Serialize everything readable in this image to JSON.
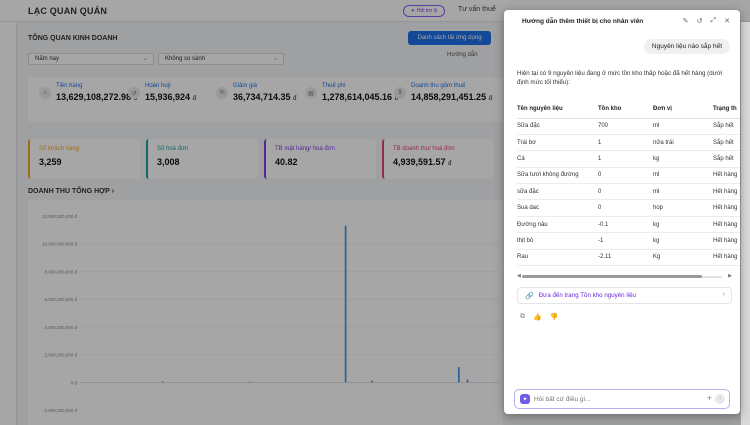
{
  "app": {
    "brand": "LẠC QUAN QUÁN",
    "top_badge": "Hỏi trợ lý",
    "top_link": "Tư vấn thuế"
  },
  "dashboard": {
    "section_title": "TỔNG QUAN KINH DOANH",
    "primary_button": "Danh sách tải ứng dụng",
    "period_select": "Năm nay",
    "compare_select": "Không so sánh",
    "guide_label": "Hướng dẫn",
    "kpis": [
      {
        "label": "Tiền hàng",
        "value": "13,629,108,272.98",
        "unit": "đ"
      },
      {
        "label": "Hoàn huỷ",
        "value": "15,936,924",
        "unit": "đ"
      },
      {
        "label": "Giảm giá",
        "value": "36,734,714.35",
        "unit": "đ"
      },
      {
        "label": "Thuế phí",
        "value": "1,278,614,045.16",
        "unit": "đ"
      },
      {
        "label": "Doanh thu gồm thuế",
        "value": "14,858,291,451.25",
        "unit": "đ"
      }
    ],
    "cards": [
      {
        "label": "Số khách hàng",
        "value": "3,259",
        "unit": "",
        "color": "#f5a623"
      },
      {
        "label": "Số hoá đơn",
        "value": "3,008",
        "unit": "",
        "color": "#1aa39a"
      },
      {
        "label": "TB mặt hàng/ hoá đơn",
        "value": "40.82",
        "unit": "",
        "color": "#7b3fe4"
      },
      {
        "label": "TB doanh thu/ hoá đơn",
        "value": "4,939,591.57",
        "unit": "đ",
        "color": "#e0457b"
      }
    ],
    "chart_title": "DOANH THU TỔNG HỢP"
  },
  "chart_data": {
    "type": "bar",
    "title": "",
    "ylim": [
      -2000000000,
      12000000000
    ],
    "yticks": [
      "12,000,000,000 đ",
      "10,000,000,000 đ",
      "8,000,000,000 đ",
      "6,000,000,000 đ",
      "4,000,000,000 đ",
      "2,000,000,000 đ",
      "0 đ",
      "-2,000,000,000 đ"
    ],
    "ytick_values": [
      12000000000,
      10000000000,
      8000000000,
      6000000000,
      4000000000,
      2000000000,
      0,
      -2000000000
    ],
    "n_bars": 48,
    "spikes": [
      {
        "index": 9,
        "value": 60000000
      },
      {
        "index": 19,
        "value": 40000000
      },
      {
        "index": 30,
        "value": 11300000000
      },
      {
        "index": 33,
        "value": 120000000
      },
      {
        "index": 43,
        "value": 1100000000
      },
      {
        "index": 44,
        "value": 200000000
      }
    ],
    "color": "#3d8ee8"
  },
  "chat": {
    "title": "Hướng dẫn thêm thiết bị cho nhân viên",
    "user_message": "Nguyên liệu nào sắp hết",
    "intro": "Hiện tại có 9 nguyên liệu đang ở mức tồn kho thấp hoặc đã hết hàng (dưới định mức tối thiểu):",
    "columns": [
      "Tên nguyên liệu",
      "Tồn kho",
      "Đơn vị",
      "Trạng th"
    ],
    "rows": [
      [
        "Sữa đặc",
        "700",
        "ml",
        "Sắp hết"
      ],
      [
        "Trái bơ",
        "1",
        "nửa trái",
        "Sắp hết"
      ],
      [
        "Cá",
        "1",
        "kg",
        "Sắp hết"
      ],
      [
        "Sữa tươi không đường",
        "0",
        "ml",
        "Hết hàng"
      ],
      [
        "sữa đặc",
        "0",
        "ml",
        "Hết hàng"
      ],
      [
        "Sua dac",
        "0",
        "hop",
        "Hết hàng"
      ],
      [
        "Đường nâu",
        "-0.1",
        "kg",
        "Hết hàng"
      ],
      [
        "thịt bò",
        "-1",
        "kg",
        "Hết hàng"
      ],
      [
        "Rau",
        "-2.11",
        "Kg",
        "Hết hàng"
      ]
    ],
    "link_text": "Đưa đến trang Tồn kho nguyên liệu",
    "input_placeholder": "Hỏi bất cứ điều gì..."
  }
}
